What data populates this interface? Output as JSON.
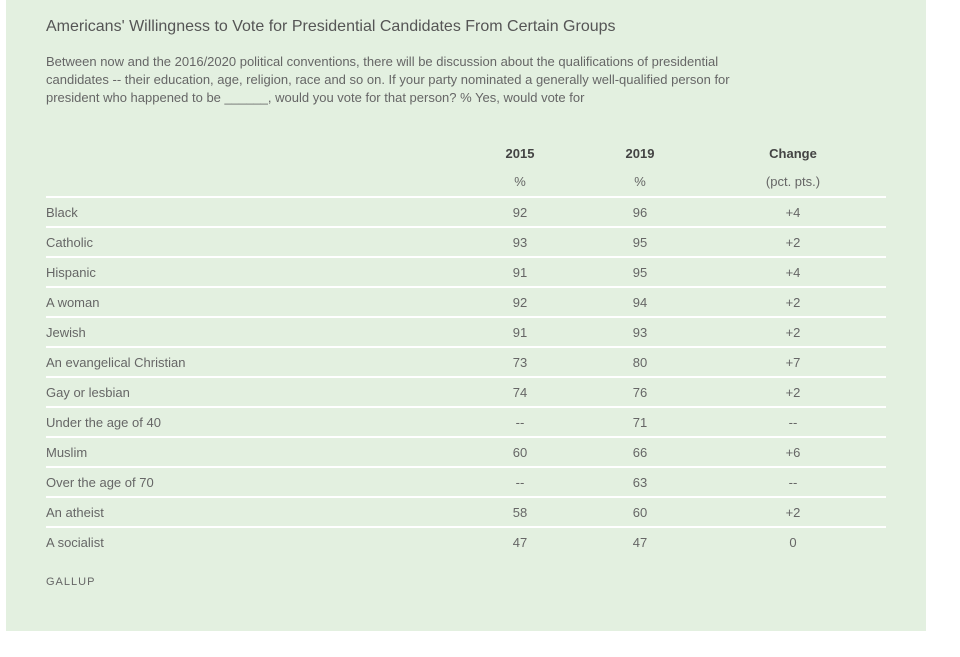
{
  "title": "Americans' Willingness to Vote for Presidential Candidates From Certain Groups",
  "subtitle": "Between now and the 2016/2020 political conventions, there will be discussion about the qualifications of presidential candidates -- their education, age, religion, race and so on. If your party nominated a generally well-qualified person for president who happened to be ______, would you vote for that person? % Yes, would vote for",
  "source": "GALLUP",
  "colors": {
    "panel_background": "#e3f0e0",
    "row_divider": "#ffffff",
    "text": "#666666"
  },
  "chart_data": {
    "type": "table",
    "columns": [
      "2015",
      "2019",
      "Change"
    ],
    "units": [
      "%",
      "%",
      "(pct. pts.)"
    ],
    "rows": [
      {
        "group": "Black",
        "y2015": "92",
        "y2019": "96",
        "change": "+4"
      },
      {
        "group": "Catholic",
        "y2015": "93",
        "y2019": "95",
        "change": "+2"
      },
      {
        "group": "Hispanic",
        "y2015": "91",
        "y2019": "95",
        "change": "+4"
      },
      {
        "group": "A woman",
        "y2015": "92",
        "y2019": "94",
        "change": "+2"
      },
      {
        "group": "Jewish",
        "y2015": "91",
        "y2019": "93",
        "change": "+2"
      },
      {
        "group": "An evangelical Christian",
        "y2015": "73",
        "y2019": "80",
        "change": "+7"
      },
      {
        "group": "Gay or lesbian",
        "y2015": "74",
        "y2019": "76",
        "change": "+2"
      },
      {
        "group": "Under the age of 40",
        "y2015": "--",
        "y2019": "71",
        "change": "--"
      },
      {
        "group": "Muslim",
        "y2015": "60",
        "y2019": "66",
        "change": "+6"
      },
      {
        "group": "Over the age of 70",
        "y2015": "--",
        "y2019": "63",
        "change": "--"
      },
      {
        "group": "An atheist",
        "y2015": "58",
        "y2019": "60",
        "change": "+2"
      },
      {
        "group": "A socialist",
        "y2015": "47",
        "y2019": "47",
        "change": "0"
      }
    ]
  }
}
